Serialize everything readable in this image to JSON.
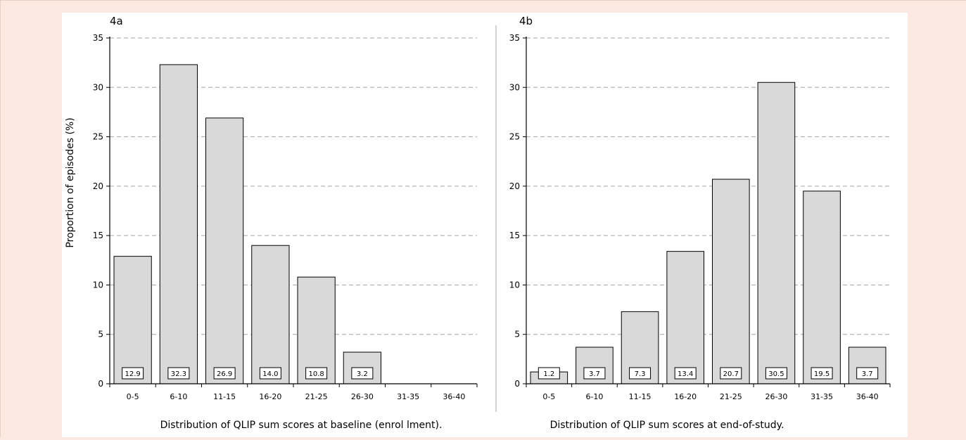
{
  "colors": {
    "page_background": "#fbe9e1",
    "figure_background": "#ffffff",
    "bar_fill": "#d9d9d9",
    "bar_stroke": "#000000",
    "gridline": "#a6a6a6"
  },
  "chart_data": [
    {
      "type": "bar",
      "panel_label": "4a",
      "title": "",
      "ylabel": "Proportion of episodes (%)",
      "xlabel": "Distribution of QLIP sum scores at baseline (enrol lment).",
      "categories": [
        "0-5",
        "6-10",
        "11-15",
        "16-20",
        "21-25",
        "26-30",
        "31-35",
        "36-40"
      ],
      "values": [
        12.9,
        32.3,
        26.9,
        14.0,
        10.8,
        3.2,
        0,
        0
      ],
      "data_labels": [
        "12.9",
        "32.3",
        "26.9",
        "14.0",
        "10.8",
        "3.2",
        "",
        ""
      ],
      "ylim": [
        0,
        35
      ],
      "yticks": [
        "0",
        "5",
        "10",
        "15",
        "20",
        "25",
        "30",
        "35"
      ],
      "grid": true
    },
    {
      "type": "bar",
      "panel_label": "4b",
      "title": "",
      "ylabel": "",
      "xlabel": "Distribution of QLIP sum scores at end-of-study.",
      "categories": [
        "0-5",
        "6-10",
        "11-15",
        "16-20",
        "21-25",
        "26-30",
        "31-35",
        "36-40"
      ],
      "values": [
        1.2,
        3.7,
        7.3,
        13.4,
        20.7,
        30.5,
        19.5,
        3.7
      ],
      "data_labels": [
        "1.2",
        "3.7",
        "7.3",
        "13.4",
        "20.7",
        "30.5",
        "19.5",
        "3.7"
      ],
      "ylim": [
        0,
        35
      ],
      "yticks": [
        "0",
        "5",
        "10",
        "15",
        "20",
        "25",
        "30",
        "35"
      ],
      "grid": true
    }
  ]
}
